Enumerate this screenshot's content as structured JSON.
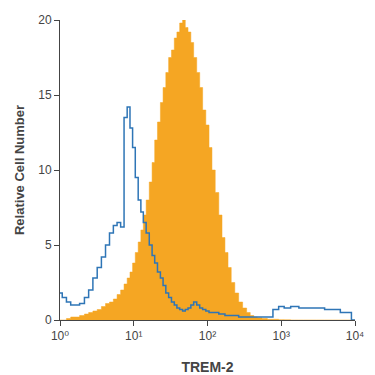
{
  "chart_data": {
    "type": "step",
    "xlabel": "TREM-2",
    "ylabel": "Relative Cell Number",
    "log": "x",
    "grid": false,
    "x": [
      1.0,
      1.15,
      1.3,
      1.5,
      1.7,
      2.0,
      2.3,
      2.6,
      3.0,
      3.4,
      3.9,
      4.4,
      5.0,
      5.6,
      6.3,
      7.0,
      7.8,
      8.5,
      9.3,
      10.0,
      11.0,
      12.0,
      13.0,
      14.0,
      15.5,
      17.0,
      18.5,
      20.0,
      22.0,
      24.0,
      26.0,
      28.5,
      31.0,
      34.0,
      37.0,
      40.0,
      44.0,
      48.0,
      52.0,
      57.0,
      62.0,
      68.0,
      75.0,
      82.0,
      90.0,
      100.0,
      110.0,
      120.0,
      135.0,
      150.0,
      165.0,
      180.0,
      200.0,
      220.0,
      250.0,
      280.0,
      320.0,
      360.0,
      400.0,
      450.0,
      500.0,
      600.0,
      700.0,
      850.0,
      1000.0,
      1200.0,
      1500.0,
      2000.0,
      3000.0,
      5000.0,
      8000.0,
      10000.0
    ],
    "series": [
      {
        "type": "area",
        "color": "#F5A623",
        "values": [
          0.0,
          0.0,
          0.1,
          0.2,
          0.2,
          0.3,
          0.4,
          0.5,
          0.6,
          0.7,
          0.9,
          1.1,
          1.2,
          1.4,
          1.7,
          2.0,
          2.4,
          2.8,
          3.2,
          3.8,
          4.5,
          5.2,
          6.0,
          7.0,
          8.0,
          9.2,
          10.5,
          12.0,
          13.2,
          14.5,
          15.5,
          16.5,
          17.5,
          18.0,
          18.8,
          19.2,
          19.8,
          20.0,
          19.5,
          19.2,
          18.5,
          17.5,
          16.5,
          15.5,
          14.0,
          13.0,
          11.5,
          10.0,
          8.5,
          7.0,
          5.5,
          4.5,
          3.5,
          2.5,
          1.8,
          1.2,
          0.8,
          0.5,
          0.3,
          0.2,
          0.15,
          0.1,
          0.05,
          0.05,
          0.02,
          0.01,
          0.0,
          0.0,
          0.0,
          0.0,
          0.0,
          0.0
        ]
      },
      {
        "type": "line",
        "color": "#2E75B6",
        "values": [
          1.8,
          1.5,
          1.2,
          1.0,
          1.0,
          1.1,
          1.5,
          2.0,
          2.8,
          3.5,
          4.2,
          5.0,
          5.8,
          6.3,
          6.5,
          6.2,
          13.5,
          14.2,
          12.8,
          11.5,
          9.5,
          8.0,
          7.2,
          6.5,
          5.8,
          5.0,
          4.3,
          3.8,
          3.2,
          2.8,
          2.3,
          1.8,
          1.5,
          1.2,
          1.0,
          0.8,
          0.7,
          0.6,
          0.7,
          0.8,
          1.0,
          1.2,
          1.0,
          0.8,
          0.7,
          0.6,
          0.5,
          0.5,
          0.5,
          0.4,
          0.4,
          0.3,
          0.3,
          0.3,
          0.3,
          0.2,
          0.2,
          0.2,
          0.2,
          0.2,
          0.2,
          0.2,
          0.2,
          0.7,
          0.9,
          0.8,
          0.9,
          0.8,
          0.8,
          0.7,
          0.5,
          0.0
        ]
      }
    ],
    "xlim": [
      1,
      10000
    ],
    "xticks": [
      {
        "value": 1,
        "label": "10⁰"
      },
      {
        "value": 10,
        "label": "10¹"
      },
      {
        "value": 100,
        "label": "10²"
      },
      {
        "value": 1000,
        "label": "10³"
      },
      {
        "value": 10000,
        "label": "10⁴"
      }
    ],
    "ylim": [
      0,
      20
    ],
    "yticks": [
      0,
      5,
      10,
      15,
      20
    ]
  }
}
